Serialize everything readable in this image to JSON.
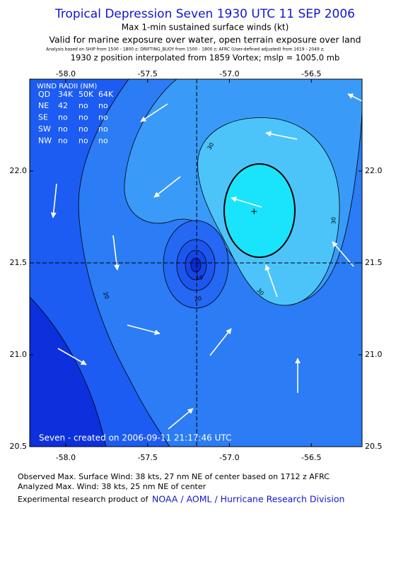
{
  "title": "Tropical Depression Seven 1930 UTC 11 SEP 2006",
  "subtitle": "Max 1-min sustained surface winds (kt)",
  "valid_line": "Valid for marine exposure over water, open terrain exposure over land",
  "analysis_line": "Analysis based on SHIP from 1500 - 1800 z;  DRIFTING_BUOY from 1500 - 1800 z;  AFRC (User-defined adjusted) from 1619 - 2049 z;",
  "position_line": "1930 z position interpolated from 1859 Vortex; mslp = 1005.0 mb",
  "map": {
    "xlim": [
      -58.22,
      -56.19
    ],
    "ylim": [
      20.5,
      22.5
    ],
    "xticks": [
      {
        "value": -58,
        "label": "-58.0"
      },
      {
        "value": -57.5,
        "label": "-57.5"
      },
      {
        "value": -57,
        "label": "-57.0"
      },
      {
        "value": -56.5,
        "label": "-56.5"
      }
    ],
    "yticks": [
      {
        "value": 20.5,
        "label": "20.5"
      },
      {
        "value": 21,
        "label": "21.0"
      },
      {
        "value": 21.5,
        "label": "21.5"
      },
      {
        "value": 22,
        "label": "22.0"
      }
    ],
    "center": {
      "lon": -57.2,
      "lat": 21.5
    },
    "max_wind": {
      "lon": -56.85,
      "lat": 21.78
    },
    "contour_labels": [
      30,
      30,
      30,
      20,
      20,
      10
    ],
    "stamp": "Seven - created on 2006-09-11 21:17:46 UTC"
  },
  "wind_radii": {
    "title": "WIND RADII (NM)",
    "header": [
      "QD",
      "34K",
      "50K",
      "64K"
    ],
    "rows": [
      [
        "NE",
        "42",
        "no",
        "no"
      ],
      [
        "SE",
        "no",
        "no",
        "no"
      ],
      [
        "SW",
        "no",
        "no",
        "no"
      ],
      [
        "NW",
        "no",
        "no",
        "no"
      ]
    ]
  },
  "footer": {
    "observed": "Observed Max. Surface Wind: 38 kts, 27 nm NE of center based on 1712 z AFRC",
    "analyzed": "Analyzed Max. Wind: 38 kts, 25 nm NE of center",
    "credit": "Experimental research product of",
    "link": "NOAA / AOML / Hurricane Research Division"
  }
}
